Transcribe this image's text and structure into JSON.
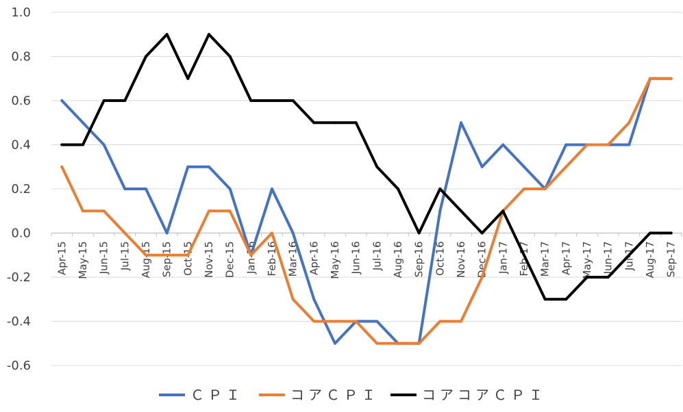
{
  "chart_data": {
    "type": "line",
    "title": "",
    "xlabel": "",
    "ylabel": "",
    "ylim": [
      -0.6,
      1.0
    ],
    "y_ticks": [
      "1.0",
      "0.8",
      "0.6",
      "0.4",
      "0.2",
      "0.0",
      "-0.2",
      "-0.4",
      "-0.6"
    ],
    "y_tick_values": [
      1.0,
      0.8,
      0.6,
      0.4,
      0.2,
      0.0,
      -0.2,
      -0.4,
      -0.6
    ],
    "grid": true,
    "legend_position": "bottom",
    "categories": [
      "Apr-15",
      "May-15",
      "Jun-15",
      "Jul-15",
      "Aug-15",
      "Sep-15",
      "Oct-15",
      "Nov-15",
      "Dec-15",
      "Jan-16",
      "Feb-16",
      "Mar-16",
      "Apr-16",
      "May-16",
      "Jun-16",
      "Jul-16",
      "Aug-16",
      "Sep-16",
      "Oct-16",
      "Nov-16",
      "Dec-16",
      "Jan-17",
      "Feb-17",
      "Mar-17",
      "Apr-17",
      "May-17",
      "Jun-17",
      "Jul-17",
      "Aug-17",
      "Sep-17"
    ],
    "series": [
      {
        "name": "ＣＰＩ",
        "color": "#4472C4",
        "values": [
          0.6,
          0.5,
          0.4,
          0.2,
          0.2,
          0.0,
          0.3,
          0.3,
          0.2,
          -0.1,
          0.2,
          0.0,
          -0.3,
          -0.5,
          -0.4,
          -0.4,
          -0.5,
          -0.5,
          0.1,
          0.5,
          0.3,
          0.4,
          0.3,
          0.2,
          0.4,
          0.4,
          0.4,
          0.4,
          0.7,
          0.7
        ]
      },
      {
        "name": "コアＣＰＩ",
        "color": "#ED7D31",
        "values": [
          0.3,
          0.1,
          0.1,
          0.0,
          -0.1,
          -0.1,
          -0.1,
          0.1,
          0.1,
          -0.1,
          0.0,
          -0.3,
          -0.4,
          -0.4,
          -0.4,
          -0.5,
          -0.5,
          -0.5,
          -0.4,
          -0.4,
          -0.2,
          0.1,
          0.2,
          0.2,
          0.3,
          0.4,
          0.4,
          0.5,
          0.7,
          0.7
        ]
      },
      {
        "name": "コアコアＣＰＩ",
        "color": "#000000",
        "values": [
          0.4,
          0.4,
          0.6,
          0.6,
          0.8,
          0.9,
          0.7,
          0.9,
          0.8,
          0.6,
          0.6,
          0.6,
          0.5,
          0.5,
          0.5,
          0.3,
          0.2,
          0.0,
          0.2,
          0.1,
          0.0,
          0.1,
          -0.1,
          -0.3,
          -0.3,
          -0.2,
          -0.2,
          -0.1,
          0.0,
          0.0
        ]
      }
    ],
    "gridline_color": "#D9D9D9",
    "axis_line_color": "#BFBFBF"
  }
}
